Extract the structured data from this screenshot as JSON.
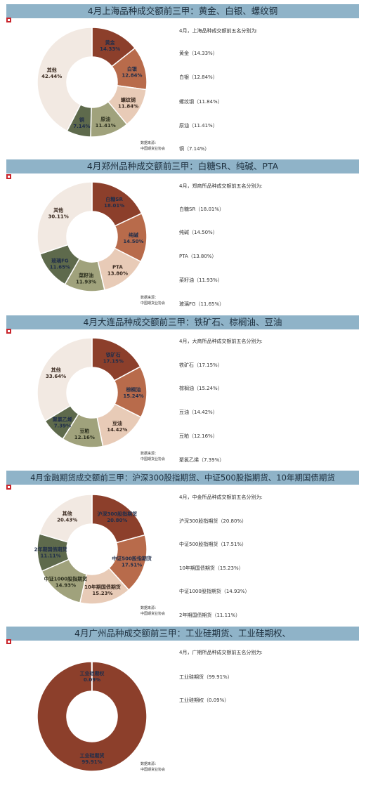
{
  "colors": {
    "header_bg": "#8fb3c8",
    "header_text": "#1d2f3e",
    "logo": "#c9242b",
    "slice_palette": [
      "#8c3f2b",
      "#b86b4b",
      "#e8cbb7",
      "#a0a27c",
      "#5e6a4c",
      "#f2e9e2"
    ]
  },
  "source_lines": [
    "数据来源：",
    "中国期货业协会"
  ],
  "panels": [
    {
      "title": "4月上海品种成交额前三甲：黄金、白银、螺纹钢",
      "intro": "4月，上海品种成交额前五名分别为:",
      "items": [
        "黄金（14.33%）",
        "白银（12.84%）",
        "螺纹钢（11.84%）",
        "原油（11.41%）",
        "铜（7.14%）"
      ],
      "chart_data": {
        "type": "pie",
        "labels": [
          "黄金",
          "白银",
          "螺纹钢",
          "原油",
          "铜",
          "其他"
        ],
        "values": [
          14.33,
          12.84,
          11.84,
          11.41,
          7.14,
          42.44
        ],
        "value_labels": [
          "14.33%",
          "12.84%",
          "11.84%",
          "11.41%",
          "7.14%",
          "42.44%"
        ]
      }
    },
    {
      "title": "4月郑州品种成交额前三甲：白糖SR、纯碱、PTA",
      "intro": "4月，郑商所品种成交额前五名分别为:",
      "items": [
        "白糖SR（18.01%）",
        "纯碱（14.50%）",
        "PTA（13.80%）",
        "菜籽油（11.93%）",
        "玻璃FG（11.65%）"
      ],
      "chart_data": {
        "type": "pie",
        "labels": [
          "白糖SR",
          "纯碱",
          "PTA",
          "菜籽油",
          "玻璃FG",
          "其他"
        ],
        "values": [
          18.01,
          14.5,
          13.8,
          11.93,
          11.65,
          30.11
        ],
        "value_labels": [
          "18.01%",
          "14.50%",
          "13.80%",
          "11.93%",
          "11.65%",
          "30.11%"
        ]
      }
    },
    {
      "title": "4月大连品种成交额前三甲：铁矿石、棕榈油、豆油",
      "intro": "4月，大商所品种成交额前五名分别为:",
      "items": [
        "铁矿石（17.15%）",
        "棕榈油（15.24%）",
        "豆油（14.42%）",
        "豆粕（12.16%）",
        "聚氯乙烯（7.39%）"
      ],
      "chart_data": {
        "type": "pie",
        "labels": [
          "铁矿石",
          "棕榈油",
          "豆油",
          "豆粕",
          "聚氯乙烯",
          "其他"
        ],
        "values": [
          17.15,
          15.24,
          14.42,
          12.16,
          7.39,
          33.64
        ],
        "value_labels": [
          "17.15%",
          "15.24%",
          "14.42%",
          "12.16%",
          "7.39%",
          "33.64%"
        ]
      }
    },
    {
      "title": "4月金融期货成交额前三甲：沪深300股指期货、中证500股指期货、10年期国债期货",
      "intro": "4月，中金所品种成交额前五名分别为:",
      "items": [
        "沪深300股指期货（20.80%）",
        "中证500股指期货（17.51%）",
        "10年期国债期货（15.23%）",
        "中证1000股指期货（14.93%）",
        "2年期国债期货（11.11%）"
      ],
      "chart_data": {
        "type": "pie",
        "labels": [
          "沪深300股指期货",
          "中证500股指期货",
          "10年期国债期货",
          "中证1000股指期货",
          "2年期国债期货",
          "其他"
        ],
        "values": [
          20.8,
          17.51,
          15.23,
          14.93,
          11.11,
          20.43
        ],
        "value_labels": [
          "20.80%",
          "17.51%",
          "15.23%",
          "14.93%",
          "11.11%",
          "20.43%"
        ]
      }
    },
    {
      "title": "4月广州品种成交额前三甲：工业硅期货、工业硅期权、",
      "intro": "4月，广期所品种成交额前五名分别为:",
      "items": [
        "工业硅期货（99.91%）",
        "工业硅期权（0.09%）"
      ],
      "chart_data": {
        "type": "pie",
        "labels": [
          "工业硅期货",
          "工业硅期权"
        ],
        "values": [
          99.91,
          0.09
        ],
        "value_labels": [
          "99.91%",
          "0.09%"
        ]
      }
    }
  ]
}
